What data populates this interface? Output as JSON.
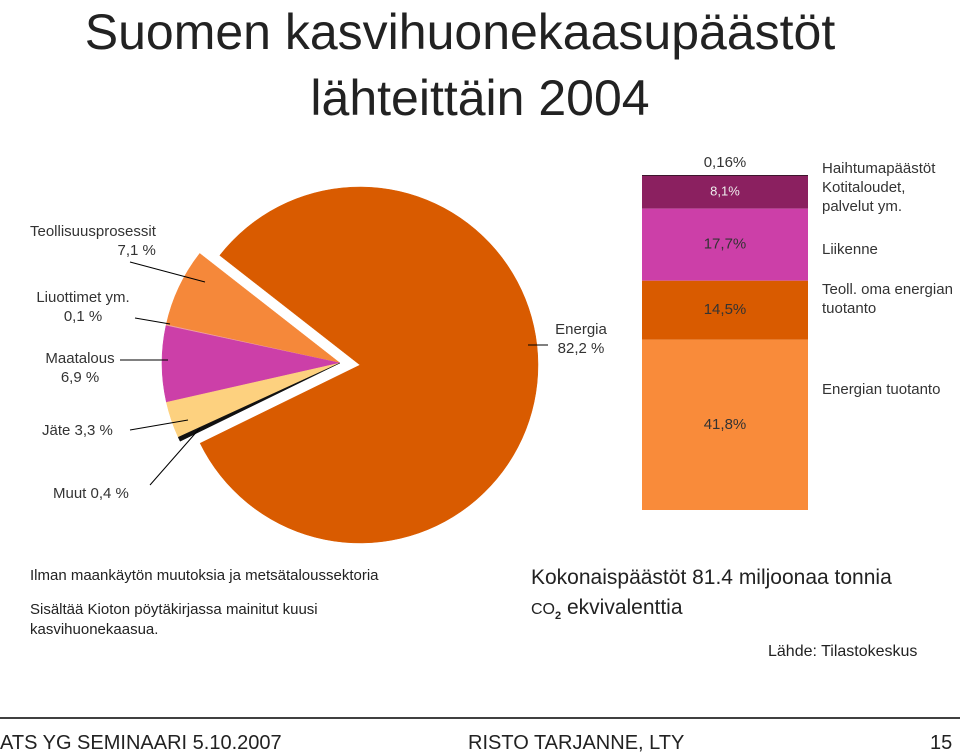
{
  "title": [
    "Suomen kasvihuonekaasupäästöt",
    "lähteittäin 2004"
  ],
  "chart_data": [
    {
      "type": "pie",
      "categories": [
        "Energia",
        "Muut",
        "Jäte",
        "Maatalous",
        "Liuottimet ym.",
        "Teollisuusprosessit"
      ],
      "values": [
        82.2,
        0.4,
        3.3,
        6.9,
        0.1,
        7.1
      ],
      "value_labels": [
        "82,2 %",
        "0,4 %",
        "3,3 %",
        "6,9 %",
        "0,1 %",
        "7,1 %"
      ],
      "colors": [
        "#d95b00",
        "#111111",
        "#fdd17f",
        "#cc3fa8",
        "#f0a0a0",
        "#f5883a"
      ]
    },
    {
      "type": "stacked-bar",
      "series": [
        {
          "name": "Energian tuotanto",
          "color": "#f98b3a",
          "values": [
            41.8
          ],
          "value_labels": [
            "41,8%"
          ]
        },
        {
          "name": "Teoll. oma energian tuotanto",
          "color": "#d95b00",
          "values": [
            14.5
          ],
          "value_labels": [
            "14,5%"
          ]
        },
        {
          "name": "Liikenne",
          "color": "#cc3fa8",
          "values": [
            17.7
          ],
          "value_labels": [
            "17,7%"
          ]
        },
        {
          "name": "Kotitaloudet, palvelut ym.",
          "color": "#8b2060",
          "values": [
            8.1
          ],
          "value_labels": [
            "8,1%"
          ]
        },
        {
          "name": "Haihtumapäästöt",
          "color": "#111111",
          "values": [
            0.16
          ],
          "value_labels": [
            "0,16%"
          ]
        }
      ]
    }
  ],
  "notes": [
    "Ilman maankäytön muutoksia ja metsätaloussektoria",
    "Sisältää Kioton pöytäkirjassa mainitut kuusi kasvihuonekaasua."
  ],
  "total": {
    "line1": "Kokonaispäästöt 81.4 miljoonaa tonnia",
    "prefix": "CO",
    "sub": "2",
    "suffix": "ekvivalenttia"
  },
  "source": "Lähde: Tilastokeskus",
  "footer": {
    "left": "ATS YG SEMINAARI 5.10.2007",
    "center": "RISTO TARJANNE, LTY",
    "right": "15"
  }
}
